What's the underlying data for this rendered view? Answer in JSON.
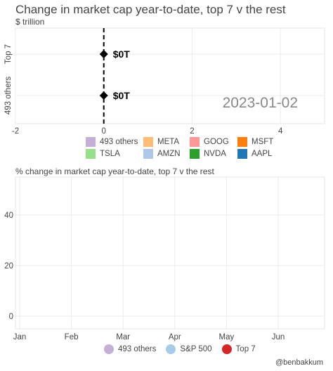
{
  "header": {
    "title": "Change in market cap year-to-date, top 7 v the rest",
    "unit_label": "$ trillion"
  },
  "chart2_title": "% change in market cap year-to-date, top 7 v the rest",
  "credit": "@benbakkum",
  "chart_data": [
    {
      "type": "scatter",
      "categories": [
        "Top 7",
        "493 others"
      ],
      "points": [
        {
          "category": "Top 7",
          "value": 0,
          "label": "$0T"
        },
        {
          "category": "493 others",
          "value": 0,
          "label": "$0T"
        }
      ],
      "date_label": "2023-01-02",
      "xlim": [
        -2,
        5
      ],
      "x_ticks": [
        -2,
        0,
        2,
        4
      ],
      "grid": true,
      "zero_line": "dashed",
      "legend_position": "bottom",
      "legend": [
        {
          "name": "493 others",
          "color": "#c5b0d5"
        },
        {
          "name": "META",
          "color": "#ffbb78"
        },
        {
          "name": "GOOG",
          "color": "#ff9896"
        },
        {
          "name": "MSFT",
          "color": "#ff7f0e"
        },
        {
          "name": "TSLA",
          "color": "#98df8a"
        },
        {
          "name": "AMZN",
          "color": "#aec7e8"
        },
        {
          "name": "NVDA",
          "color": "#2ca02c"
        },
        {
          "name": "AAPL",
          "color": "#1f77b4"
        }
      ]
    },
    {
      "type": "line",
      "x_ticks": [
        "Jan",
        "Feb",
        "Mar",
        "Apr",
        "May",
        "Jun"
      ],
      "y_ticks": [
        0,
        20,
        40
      ],
      "ylim": [
        -5,
        55
      ],
      "grid": true,
      "legend_position": "bottom",
      "series": [
        {
          "name": "493 others",
          "color": "#c5b0d5",
          "values": []
        },
        {
          "name": "S&P 500",
          "color": "#a8cce8",
          "values": []
        },
        {
          "name": "Top 7",
          "color": "#d62728",
          "values": []
        }
      ]
    }
  ]
}
